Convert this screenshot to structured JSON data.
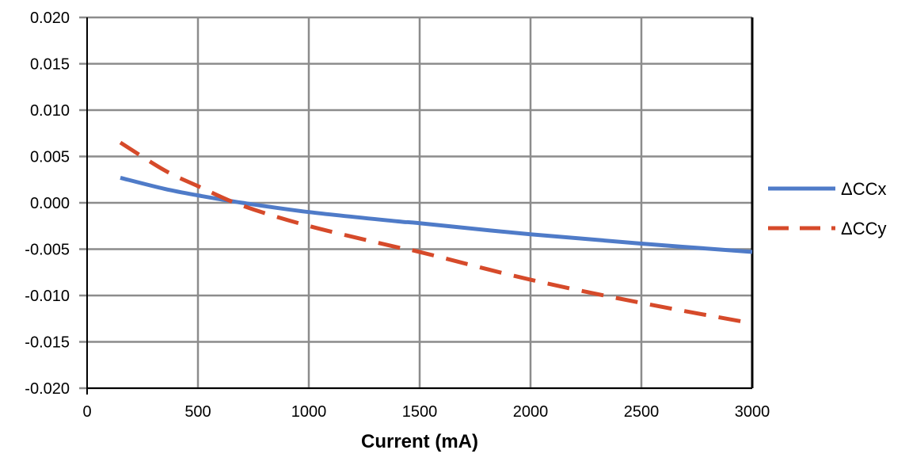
{
  "chart_data": {
    "type": "line",
    "title": "",
    "xlabel": "Current (mA)",
    "ylabel": "",
    "xlim": [
      0,
      3000
    ],
    "ylim": [
      -0.02,
      0.02
    ],
    "xticks": [
      "0",
      "500",
      "1000",
      "1500",
      "2000",
      "2500",
      "3000"
    ],
    "yticks": [
      "0.020",
      "0.015",
      "0.010",
      "0.005",
      "0.000",
      "-0.005",
      "-0.010",
      "-0.015",
      "-0.020"
    ],
    "grid": true,
    "legend_position": "right",
    "x": [
      150,
      350,
      500,
      700,
      1000,
      1400,
      1500,
      2000,
      2500,
      3000
    ],
    "series": [
      {
        "name": "ΔCCx",
        "color": "#4f7bc8",
        "style": "solid",
        "values": [
          0.0027,
          0.0015,
          0.0008,
          0.0,
          -0.001,
          -0.002,
          -0.0022,
          -0.0034,
          -0.0044,
          -0.0053
        ]
      },
      {
        "name": "ΔCCy",
        "color": "#d64a2a",
        "style": "dashed",
        "values": [
          0.0065,
          0.0035,
          0.0018,
          -0.0003,
          -0.0025,
          -0.0048,
          -0.0053,
          -0.0083,
          -0.0108,
          -0.013
        ]
      }
    ]
  }
}
